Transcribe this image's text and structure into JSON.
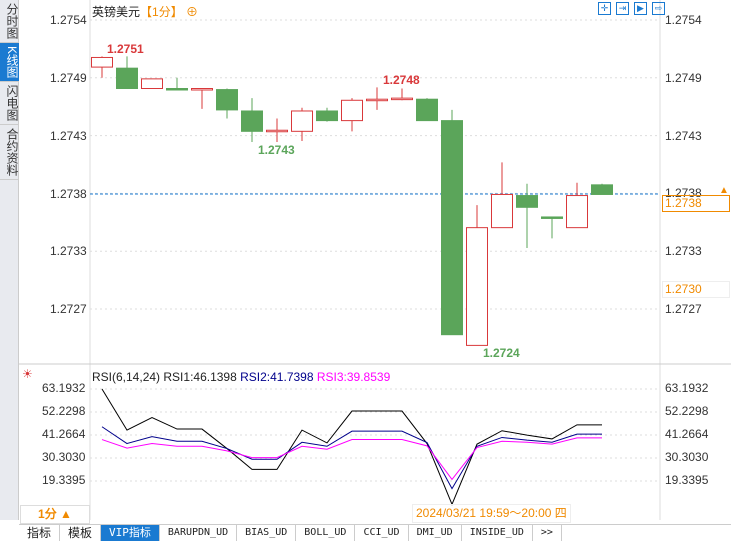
{
  "sidebar": {
    "tabs": [
      {
        "label": "分时图"
      },
      {
        "label": "K线图",
        "active": true
      },
      {
        "label": "闪电图"
      },
      {
        "label": "合约资料"
      }
    ]
  },
  "header": {
    "symbol": "英镑美元",
    "period": "【1分】",
    "zoom_icon": "circle-plus-icon"
  },
  "toolbar_icons": [
    "crosshair-icon",
    "fit-range-icon",
    "play-range-icon",
    "goto-end-icon"
  ],
  "price_axis": {
    "ticks": [
      "1.2754",
      "1.2749",
      "1.2743",
      "1.2738",
      "1.2733",
      "1.2727"
    ],
    "current_price": "1.2738",
    "marker_price": "1.2730"
  },
  "annotations": {
    "high": "1.2751",
    "high2": "1.2748",
    "low": "1.2743",
    "low2": "1.2724"
  },
  "rsi": {
    "label": "RSI(6,14,24)",
    "rsi1": "RSI1:46.1398",
    "rsi2": "RSI2:41.7398",
    "rsi3": "RSI3:39.8539",
    "ticks": [
      "63.1932",
      "52.2298",
      "41.2664",
      "30.3030",
      "19.3395"
    ]
  },
  "period_button": "1分 ▲",
  "crosshair_time": "2024/03/21 19:59～20:00 四",
  "bottom_tabs": [
    "指标",
    "模板",
    "VIP指标",
    "BARUPDN_UD",
    "BIAS_UD",
    "BOLL_UD",
    "CCI_UD",
    "DMI_UD",
    "INSIDE_UD",
    ">>"
  ],
  "colors": {
    "up": "#d9383a",
    "down": "#5ba55a",
    "accent": "#1a7ad1",
    "highlight": "#f08a00",
    "rsi1": "#000000",
    "rsi2": "#00008b",
    "rsi3": "#ff00ff"
  },
  "chart_data": {
    "type": "candlestick",
    "ylim": [
      1.2722,
      1.2756
    ],
    "ohlc": [
      [
        1.27496,
        1.27506,
        1.27486,
        1.27505
      ],
      [
        1.27495,
        1.27506,
        1.27476,
        1.27476
      ],
      [
        1.27476,
        1.27485,
        1.27476,
        1.27485
      ],
      [
        1.27476,
        1.27486,
        1.27475,
        1.27475
      ],
      [
        1.27475,
        1.27476,
        1.27457,
        1.27476
      ],
      [
        1.27475,
        1.27476,
        1.27448,
        1.27456
      ],
      [
        1.27455,
        1.27467,
        1.27426,
        1.27436
      ],
      [
        1.27436,
        1.27448,
        1.27426,
        1.27437
      ],
      [
        1.27436,
        1.27458,
        1.27427,
        1.27455
      ],
      [
        1.27455,
        1.27458,
        1.27445,
        1.27446
      ],
      [
        1.27446,
        1.27467,
        1.27436,
        1.27465
      ],
      [
        1.27465,
        1.27477,
        1.27456,
        1.27466
      ],
      [
        1.27466,
        1.27476,
        1.27465,
        1.27467
      ],
      [
        1.27466,
        1.27467,
        1.27446,
        1.27446
      ],
      [
        1.27446,
        1.27456,
        1.27246,
        1.27246
      ],
      [
        1.27236,
        1.27367,
        1.27236,
        1.27346
      ],
      [
        1.27346,
        1.27407,
        1.27346,
        1.27377
      ],
      [
        1.27376,
        1.27387,
        1.27327,
        1.27365
      ],
      [
        1.27356,
        1.27356,
        1.27336,
        1.27355
      ],
      [
        1.27346,
        1.27388,
        1.27346,
        1.27376
      ],
      [
        1.27386,
        1.27387,
        1.27377,
        1.27377
      ]
    ],
    "rsi_ylim": [
      8,
      66
    ],
    "rsi1": [
      63.2,
      43.6,
      49.6,
      44.1,
      44.1,
      34.8,
      24.9,
      24.9,
      43.6,
      37.5,
      52.7,
      52.7,
      52.7,
      37.2,
      8.2,
      36.9,
      43.3,
      41.2,
      39.4,
      46.1,
      46.1
    ],
    "rsi2": [
      45.2,
      37.2,
      40.5,
      38.3,
      38.3,
      34.8,
      29.7,
      29.7,
      37.8,
      35.9,
      43.1,
      43.1,
      43.1,
      37.7,
      15.7,
      35.9,
      40.1,
      38.8,
      37.8,
      41.7,
      41.7
    ],
    "rsi3": [
      39.1,
      35.0,
      37.2,
      35.9,
      35.9,
      33.7,
      30.5,
      30.5,
      35.9,
      34.5,
      39.1,
      39.1,
      39.1,
      36.1,
      20.1,
      35.3,
      38.3,
      37.8,
      36.9,
      39.9,
      39.9
    ]
  }
}
